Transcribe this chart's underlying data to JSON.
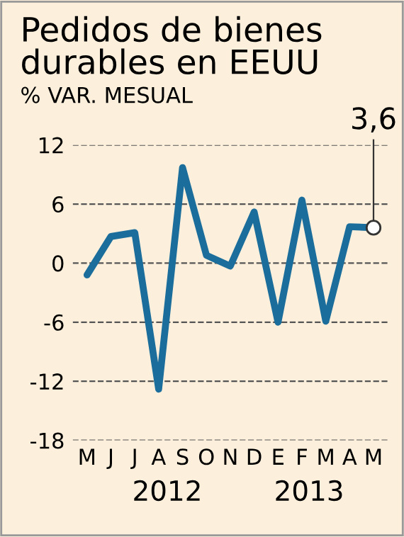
{
  "chart_data": {
    "type": "line",
    "title": "Pedidos de bienes\ndurables en EEUU",
    "ylabel": "% VAR. MESUAL",
    "categories": [
      "M",
      "J",
      "J",
      "A",
      "S",
      "O",
      "N",
      "D",
      "E",
      "F",
      "M",
      "A",
      "M"
    ],
    "series": [
      {
        "color": "#1b6e9c",
        "values": [
          -1.2,
          2.7,
          3.1,
          -12.8,
          9.7,
          0.8,
          -0.3,
          5.2,
          -6.0,
          6.4,
          -5.9,
          3.7,
          3.6
        ],
        "value_labels": [
          null,
          null,
          null,
          null,
          null,
          null,
          null,
          null,
          null,
          null,
          null,
          null,
          "3,6"
        ]
      }
    ],
    "ylim": [
      -18,
      12
    ],
    "yticks": [
      {
        "value": -18,
        "label": "-18"
      },
      {
        "value": -12,
        "label": "-12"
      },
      {
        "value": -6,
        "label": "-6"
      },
      0,
      6,
      12
    ],
    "grid": "y",
    "line_style": "solid",
    "annotations": [
      "2012",
      "2013"
    ]
  }
}
